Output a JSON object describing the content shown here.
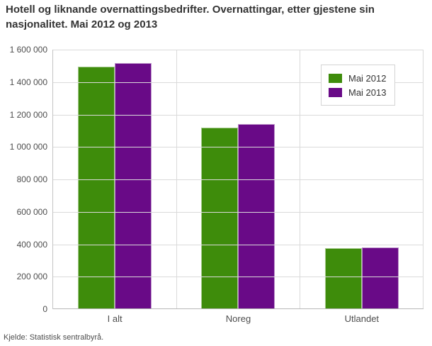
{
  "title": "Hotell og liknande overnattingsbedrifter. Overnattingar, etter gjestene sin nasjonalitet. Mai 2012 og 2013",
  "source": "Kjelde: Statistisk sentralbyrå.",
  "colors": {
    "series_2012": "#3e8c0b",
    "series_2013": "#690a87",
    "gridline": "#dadada",
    "axis_line": "#b8b8b8",
    "title_text": "#333333",
    "label_text": "#4d4d4d"
  },
  "legend": {
    "items": [
      {
        "label": "Mai 2012",
        "swatch_color": "#3e8c0b"
      },
      {
        "label": "Mai 2013",
        "swatch_color": "#690a87"
      }
    ]
  },
  "chart_data": {
    "type": "bar",
    "title": "Hotell og liknande overnattingsbedrifter. Overnattingar, etter gjestene sin nasjonalitet. Mai 2012 og 2013",
    "categories": [
      "I alt",
      "Noreg",
      "Utlandet"
    ],
    "series": [
      {
        "name": "Mai 2012",
        "color": "#3e8c0b",
        "values": [
          1496000,
          1120000,
          376000
        ]
      },
      {
        "name": "Mai 2013",
        "color": "#690a87",
        "values": [
          1518000,
          1139000,
          379000
        ]
      }
    ],
    "xlabel": "",
    "ylabel": "",
    "ylim": [
      0,
      1600000
    ],
    "ytick_interval": 200000,
    "yticks": [
      "0",
      "200 000",
      "400 000",
      "600 000",
      "800 000",
      "1 000 000",
      "1 200 000",
      "1 400 000",
      "1 600 000"
    ],
    "grid": true,
    "legend_position": "top-right"
  }
}
